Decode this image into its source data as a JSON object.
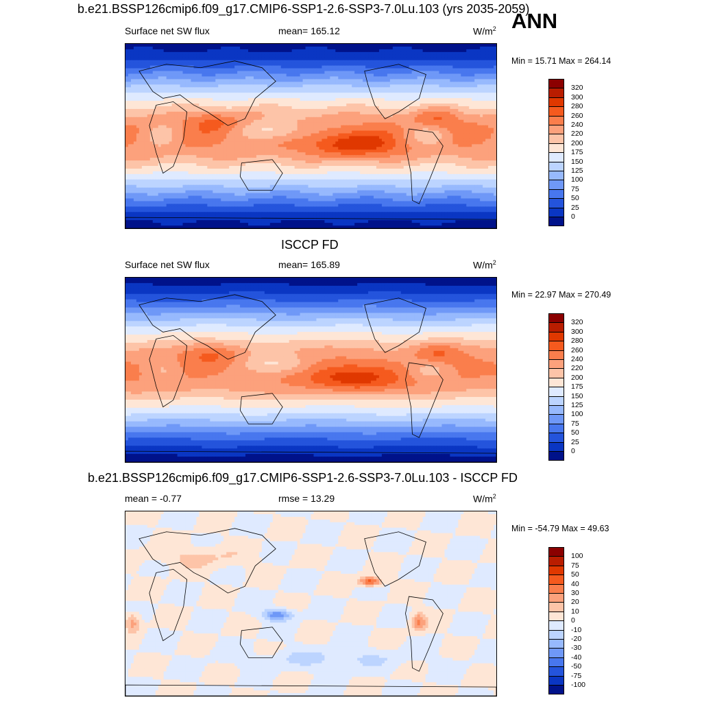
{
  "figure": {
    "season": "ANN",
    "units_base": "W/m",
    "units_exp": "2"
  },
  "chart_data": [
    {
      "type": "heatmap",
      "title": "b.e21.BSSP126cmip6.f09_g17.CMIP6-SSP1-2.6-SSP3-7.0Lu.103 (yrs 2035-2059)",
      "left_label": "Surface net SW flux",
      "mean_text": "mean= 165.12",
      "units": "W/m2",
      "min": 15.71,
      "max": 264.14,
      "minmax_text": "Min =  15.71 Max = 264.14",
      "colorbar": {
        "levels": [
          "320",
          "300",
          "280",
          "260",
          "240",
          "220",
          "200",
          "175",
          "150",
          "125",
          "100",
          "75",
          "50",
          "25",
          "0"
        ],
        "colors": [
          "#8b0000",
          "#b91d00",
          "#e03800",
          "#f55a1e",
          "#fa7e4c",
          "#fca17c",
          "#fdc4a8",
          "#fee6d6",
          "#dfeaff",
          "#bcd4ff",
          "#97b9fd",
          "#6f98f7",
          "#4877ee",
          "#2454dc",
          "#0a36c3",
          "#00128a"
        ]
      },
      "field": "model_sw"
    },
    {
      "type": "heatmap",
      "title": "ISCCP FD",
      "left_label": "Surface net SW flux",
      "mean_text": "mean= 165.89",
      "units": "W/m2",
      "min": 22.97,
      "max": 270.49,
      "minmax_text": "Min =  22.97 Max = 270.49",
      "colorbar": {
        "levels": [
          "320",
          "300",
          "280",
          "260",
          "240",
          "220",
          "200",
          "175",
          "150",
          "125",
          "100",
          "75",
          "50",
          "25",
          "0"
        ],
        "colors": [
          "#8b0000",
          "#b91d00",
          "#e03800",
          "#f55a1e",
          "#fa7e4c",
          "#fca17c",
          "#fdc4a8",
          "#fee6d6",
          "#dfeaff",
          "#bcd4ff",
          "#97b9fd",
          "#6f98f7",
          "#4877ee",
          "#2454dc",
          "#0a36c3",
          "#00128a"
        ]
      },
      "field": "obs_sw"
    },
    {
      "type": "heatmap",
      "title": "b.e21.BSSP126cmip6.f09_g17.CMIP6-SSP1-2.6-SSP3-7.0Lu.103 - ISCCP FD",
      "left_label": "mean =  -0.77",
      "mean_text": "rmse =  13.29",
      "units": "W/m2",
      "min": -54.79,
      "max": 49.63,
      "minmax_text": "Min = -54.79 Max =  49.63",
      "colorbar": {
        "levels": [
          "100",
          "75",
          "50",
          "40",
          "30",
          "20",
          "10",
          "0",
          "-10",
          "-20",
          "-30",
          "-40",
          "-50",
          "-75",
          "-100"
        ],
        "colors": [
          "#8b0000",
          "#b91d00",
          "#e03800",
          "#f55a1e",
          "#fa7e4c",
          "#fca17c",
          "#fdc4a8",
          "#fee6d6",
          "#dfeaff",
          "#bcd4ff",
          "#97b9fd",
          "#6f98f7",
          "#4877ee",
          "#2454dc",
          "#0a36c3",
          "#00128a"
        ]
      },
      "field": "difference"
    }
  ]
}
